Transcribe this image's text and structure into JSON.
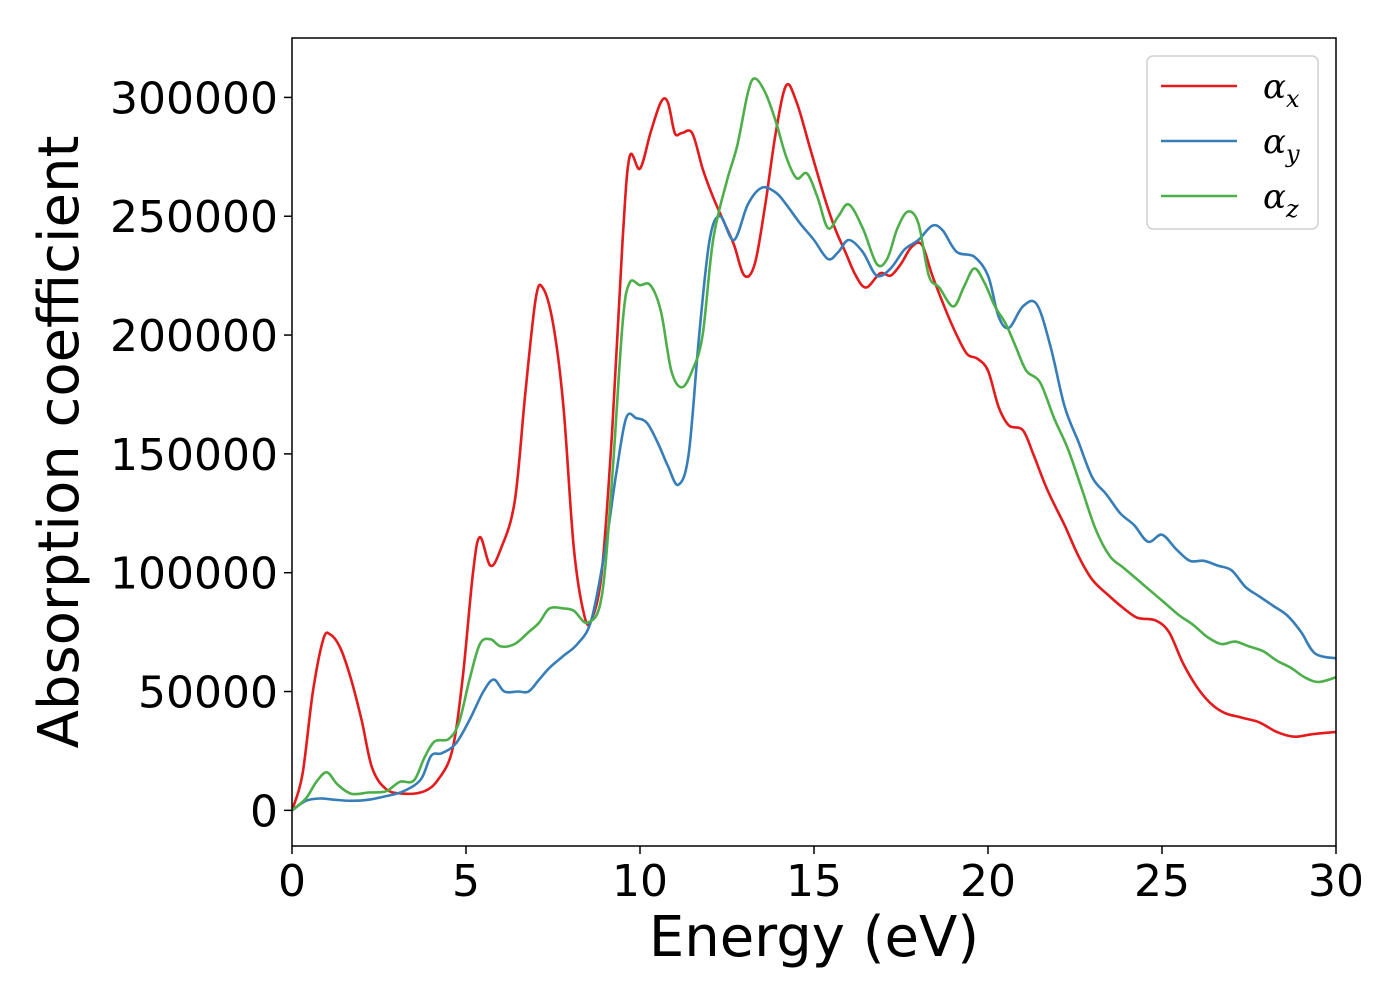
{
  "chart_data": {
    "type": "line",
    "title": "",
    "xlabel": "Energy (eV)",
    "ylabel": "Absorption coefficient",
    "xlim": [
      0,
      30
    ],
    "ylim": [
      -15000,
      325000
    ],
    "xticks": [
      0,
      5,
      10,
      15,
      20,
      25,
      30
    ],
    "yticks": [
      0,
      50000,
      100000,
      150000,
      200000,
      250000,
      300000
    ],
    "grid": false,
    "legend_position": "top-right",
    "colors": {
      "alpha_x": "#e41a1c",
      "alpha_y": "#377eb8",
      "alpha_z": "#4daf4a"
    },
    "series": [
      {
        "name": "αx",
        "legend_base": "α",
        "legend_sub": "x",
        "color": "#e41a1c",
        "points": [
          [
            0,
            0
          ],
          [
            0.3,
            15000
          ],
          [
            0.6,
            50000
          ],
          [
            0.9,
            72000
          ],
          [
            1.1,
            74000
          ],
          [
            1.4,
            68000
          ],
          [
            1.7,
            55000
          ],
          [
            2.0,
            38000
          ],
          [
            2.3,
            18000
          ],
          [
            2.7,
            9000
          ],
          [
            3.2,
            7000
          ],
          [
            3.8,
            8000
          ],
          [
            4.2,
            13000
          ],
          [
            4.6,
            25000
          ],
          [
            4.9,
            55000
          ],
          [
            5.2,
            100000
          ],
          [
            5.4,
            115000
          ],
          [
            5.7,
            103000
          ],
          [
            6.0,
            110000
          ],
          [
            6.4,
            130000
          ],
          [
            6.7,
            175000
          ],
          [
            7.0,
            215000
          ],
          [
            7.2,
            220000
          ],
          [
            7.5,
            205000
          ],
          [
            7.8,
            170000
          ],
          [
            8.1,
            110000
          ],
          [
            8.4,
            82000
          ],
          [
            8.6,
            80000
          ],
          [
            8.9,
            100000
          ],
          [
            9.2,
            160000
          ],
          [
            9.5,
            240000
          ],
          [
            9.7,
            275000
          ],
          [
            10.0,
            270000
          ],
          [
            10.3,
            285000
          ],
          [
            10.6,
            298000
          ],
          [
            10.8,
            298000
          ],
          [
            11.0,
            285000
          ],
          [
            11.2,
            285000
          ],
          [
            11.5,
            285000
          ],
          [
            11.8,
            270000
          ],
          [
            12.1,
            258000
          ],
          [
            12.4,
            248000
          ],
          [
            12.7,
            238000
          ],
          [
            13.0,
            225000
          ],
          [
            13.3,
            230000
          ],
          [
            13.6,
            255000
          ],
          [
            13.9,
            285000
          ],
          [
            14.2,
            305000
          ],
          [
            14.5,
            298000
          ],
          [
            14.9,
            278000
          ],
          [
            15.3,
            258000
          ],
          [
            15.6,
            245000
          ],
          [
            15.9,
            235000
          ],
          [
            16.2,
            225000
          ],
          [
            16.5,
            220000
          ],
          [
            16.9,
            226000
          ],
          [
            17.2,
            225000
          ],
          [
            17.5,
            230000
          ],
          [
            17.8,
            237000
          ],
          [
            18.1,
            238000
          ],
          [
            18.4,
            225000
          ],
          [
            18.8,
            210000
          ],
          [
            19.1,
            200000
          ],
          [
            19.4,
            192000
          ],
          [
            19.7,
            190000
          ],
          [
            20.0,
            185000
          ],
          [
            20.3,
            170000
          ],
          [
            20.6,
            162000
          ],
          [
            21.0,
            160000
          ],
          [
            21.3,
            150000
          ],
          [
            21.7,
            135000
          ],
          [
            22.2,
            120000
          ],
          [
            22.6,
            107000
          ],
          [
            23.0,
            97000
          ],
          [
            23.5,
            90000
          ],
          [
            23.9,
            85000
          ],
          [
            24.3,
            81000
          ],
          [
            24.8,
            80000
          ],
          [
            25.2,
            75000
          ],
          [
            25.6,
            62000
          ],
          [
            26.0,
            52000
          ],
          [
            26.4,
            45000
          ],
          [
            26.8,
            41000
          ],
          [
            27.3,
            39000
          ],
          [
            27.8,
            37000
          ],
          [
            28.3,
            33000
          ],
          [
            28.8,
            31000
          ],
          [
            29.3,
            32000
          ],
          [
            30.0,
            33000
          ]
        ]
      },
      {
        "name": "αy",
        "legend_base": "α",
        "legend_sub": "y",
        "color": "#377eb8",
        "points": [
          [
            0,
            0
          ],
          [
            0.4,
            4000
          ],
          [
            0.8,
            5000
          ],
          [
            1.2,
            4500
          ],
          [
            1.7,
            4000
          ],
          [
            2.2,
            4500
          ],
          [
            2.7,
            6000
          ],
          [
            3.2,
            8000
          ],
          [
            3.7,
            13000
          ],
          [
            4.0,
            23000
          ],
          [
            4.3,
            24000
          ],
          [
            4.7,
            28000
          ],
          [
            5.1,
            38000
          ],
          [
            5.5,
            50000
          ],
          [
            5.8,
            55000
          ],
          [
            6.1,
            50000
          ],
          [
            6.5,
            50000
          ],
          [
            6.8,
            50000
          ],
          [
            7.1,
            55000
          ],
          [
            7.4,
            60000
          ],
          [
            7.8,
            65000
          ],
          [
            8.2,
            70000
          ],
          [
            8.6,
            80000
          ],
          [
            9.0,
            110000
          ],
          [
            9.3,
            140000
          ],
          [
            9.6,
            165000
          ],
          [
            9.9,
            165000
          ],
          [
            10.2,
            163000
          ],
          [
            10.5,
            155000
          ],
          [
            10.8,
            145000
          ],
          [
            11.1,
            137000
          ],
          [
            11.4,
            150000
          ],
          [
            11.7,
            200000
          ],
          [
            12.0,
            240000
          ],
          [
            12.3,
            250000
          ],
          [
            12.7,
            240000
          ],
          [
            13.1,
            255000
          ],
          [
            13.5,
            262000
          ],
          [
            13.9,
            260000
          ],
          [
            14.2,
            255000
          ],
          [
            14.6,
            247000
          ],
          [
            15.0,
            240000
          ],
          [
            15.4,
            232000
          ],
          [
            15.7,
            235000
          ],
          [
            16.0,
            240000
          ],
          [
            16.4,
            235000
          ],
          [
            16.8,
            225000
          ],
          [
            17.2,
            228000
          ],
          [
            17.6,
            236000
          ],
          [
            18.0,
            240000
          ],
          [
            18.4,
            246000
          ],
          [
            18.7,
            244000
          ],
          [
            19.1,
            235000
          ],
          [
            19.6,
            233000
          ],
          [
            20.0,
            225000
          ],
          [
            20.3,
            208000
          ],
          [
            20.6,
            203000
          ],
          [
            21.0,
            212000
          ],
          [
            21.4,
            213000
          ],
          [
            21.8,
            195000
          ],
          [
            22.2,
            170000
          ],
          [
            22.6,
            155000
          ],
          [
            23.0,
            140000
          ],
          [
            23.4,
            133000
          ],
          [
            23.8,
            125000
          ],
          [
            24.2,
            120000
          ],
          [
            24.6,
            113000
          ],
          [
            25.0,
            116000
          ],
          [
            25.4,
            110000
          ],
          [
            25.8,
            105000
          ],
          [
            26.2,
            105000
          ],
          [
            26.6,
            103000
          ],
          [
            27.0,
            101000
          ],
          [
            27.4,
            94000
          ],
          [
            27.8,
            90000
          ],
          [
            28.2,
            86000
          ],
          [
            28.6,
            82000
          ],
          [
            29.0,
            75000
          ],
          [
            29.4,
            66000
          ],
          [
            30.0,
            64000
          ]
        ]
      },
      {
        "name": "αz",
        "legend_base": "α",
        "legend_sub": "z",
        "color": "#4daf4a",
        "points": [
          [
            0,
            0
          ],
          [
            0.4,
            5000
          ],
          [
            0.7,
            12000
          ],
          [
            1.0,
            16000
          ],
          [
            1.3,
            11000
          ],
          [
            1.7,
            7000
          ],
          [
            2.2,
            7500
          ],
          [
            2.7,
            8000
          ],
          [
            3.1,
            12000
          ],
          [
            3.5,
            12500
          ],
          [
            3.8,
            22000
          ],
          [
            4.1,
            29000
          ],
          [
            4.5,
            30000
          ],
          [
            4.8,
            37000
          ],
          [
            5.1,
            55000
          ],
          [
            5.4,
            70000
          ],
          [
            5.7,
            72000
          ],
          [
            6.0,
            69000
          ],
          [
            6.4,
            70000
          ],
          [
            6.8,
            75000
          ],
          [
            7.1,
            79000
          ],
          [
            7.4,
            85000
          ],
          [
            7.8,
            85000
          ],
          [
            8.1,
            84000
          ],
          [
            8.5,
            79000
          ],
          [
            8.9,
            90000
          ],
          [
            9.2,
            140000
          ],
          [
            9.5,
            205000
          ],
          [
            9.7,
            222000
          ],
          [
            10.0,
            221000
          ],
          [
            10.3,
            221000
          ],
          [
            10.6,
            210000
          ],
          [
            10.9,
            185000
          ],
          [
            11.2,
            178000
          ],
          [
            11.5,
            185000
          ],
          [
            11.8,
            200000
          ],
          [
            12.1,
            240000
          ],
          [
            12.5,
            265000
          ],
          [
            12.8,
            280000
          ],
          [
            13.1,
            302000
          ],
          [
            13.3,
            308000
          ],
          [
            13.6,
            302000
          ],
          [
            13.9,
            290000
          ],
          [
            14.2,
            275000
          ],
          [
            14.5,
            266000
          ],
          [
            14.8,
            268000
          ],
          [
            15.1,
            258000
          ],
          [
            15.4,
            245000
          ],
          [
            15.7,
            250000
          ],
          [
            16.0,
            255000
          ],
          [
            16.4,
            245000
          ],
          [
            16.8,
            230000
          ],
          [
            17.1,
            232000
          ],
          [
            17.4,
            245000
          ],
          [
            17.7,
            252000
          ],
          [
            18.0,
            247000
          ],
          [
            18.3,
            225000
          ],
          [
            18.6,
            220000
          ],
          [
            19.0,
            212000
          ],
          [
            19.3,
            220000
          ],
          [
            19.6,
            228000
          ],
          [
            19.9,
            222000
          ],
          [
            20.2,
            212000
          ],
          [
            20.5,
            205000
          ],
          [
            20.8,
            195000
          ],
          [
            21.1,
            185000
          ],
          [
            21.5,
            180000
          ],
          [
            21.9,
            165000
          ],
          [
            22.3,
            152000
          ],
          [
            22.7,
            135000
          ],
          [
            23.1,
            118000
          ],
          [
            23.5,
            107000
          ],
          [
            23.9,
            102000
          ],
          [
            24.3,
            97000
          ],
          [
            24.7,
            92000
          ],
          [
            25.1,
            87000
          ],
          [
            25.5,
            82000
          ],
          [
            25.9,
            78000
          ],
          [
            26.3,
            73000
          ],
          [
            26.7,
            70000
          ],
          [
            27.1,
            71000
          ],
          [
            27.5,
            69000
          ],
          [
            27.9,
            67000
          ],
          [
            28.3,
            63000
          ],
          [
            28.7,
            60000
          ],
          [
            29.1,
            56000
          ],
          [
            29.5,
            54000
          ],
          [
            30.0,
            56000
          ]
        ]
      }
    ]
  }
}
